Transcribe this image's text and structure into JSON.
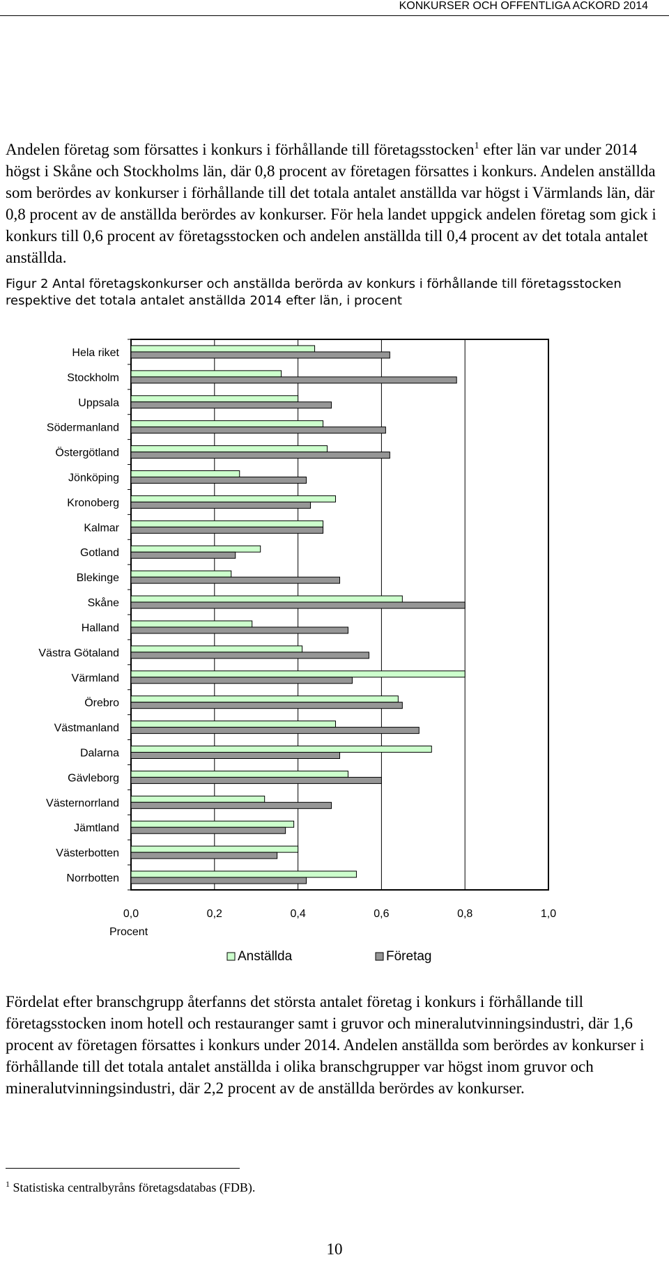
{
  "header": {
    "title": "KONKURSER OCH OFFENTLIGA ACKORD 2014"
  },
  "para1": {
    "before_sup": "Andelen företag som försattes i konkurs i förhållande till företagsstocken",
    "sup": "1",
    "after_sup": " efter län var under 2014 högst i Skåne och Stockholms län, där 0,8 procent av företagen försattes i konkurs. Andelen anställda som berördes av konkurser i förhållande till det totala antalet anställda var högst i Värmlands län, där 0,8 procent av de anställda berördes av konkurser. För hela landet uppgick andelen företag som gick i konkurs till 0,6 procent av företagsstocken och andelen anställda till 0,4 procent av det totala antalet anställda."
  },
  "figure": {
    "caption": "Figur 2 Antal företagskonkurser och anställda berörda av konkurs i förhållande till företagsstocken respektive det totala antalet anställda 2014 efter län, i procent"
  },
  "chart_data": {
    "type": "bar",
    "orientation": "horizontal",
    "categories": [
      "Hela riket",
      "Stockholm",
      "Uppsala",
      "Södermanland",
      "Östergötland",
      "Jönköping",
      "Kronoberg",
      "Kalmar",
      "Gotland",
      "Blekinge",
      "Skåne",
      "Halland",
      "Västra Götaland",
      "Värmland",
      "Örebro",
      "Västmanland",
      "Dalarna",
      "Gävleborg",
      "Västernorrland",
      "Jämtland",
      "Västerbotten",
      "Norrbotten"
    ],
    "series": [
      {
        "name": "Anställda",
        "color": "#ccffcc",
        "values": [
          0.44,
          0.36,
          0.4,
          0.46,
          0.47,
          0.26,
          0.49,
          0.46,
          0.31,
          0.24,
          0.65,
          0.29,
          0.41,
          0.8,
          0.64,
          0.49,
          0.72,
          0.52,
          0.32,
          0.39,
          0.4,
          0.54
        ]
      },
      {
        "name": "Företag",
        "color": "#969696",
        "values": [
          0.62,
          0.78,
          0.48,
          0.61,
          0.62,
          0.42,
          0.43,
          0.46,
          0.25,
          0.5,
          0.8,
          0.52,
          0.57,
          0.53,
          0.65,
          0.69,
          0.5,
          0.6,
          0.48,
          0.37,
          0.35,
          0.42
        ]
      }
    ],
    "xticks": [
      "0,0",
      "0,2",
      "0,4",
      "0,6",
      "0,8",
      "1,0"
    ],
    "xlim": [
      0,
      1.0
    ],
    "xlabel": "Procent",
    "grid": true,
    "legend": "bottom"
  },
  "para2": {
    "text": "Fördelat efter branschgrupp återfanns det största antalet företag i konkurs i förhållande till företagsstocken inom hotell och restauranger samt i gruvor och mineralutvinningsindustri, där 1,6 procent av företagen försattes i konkurs under 2014. Andelen anställda som berördes av konkurser i förhållande till det totala antalet anställda i olika branschgrupper var högst inom gruvor och mineralutvinningsindustri, där 2,2 procent av de anställda berördes av konkurser."
  },
  "footnote": {
    "number": "1",
    "text": " Statistiska centralbyråns företagsdatabas (FDB)."
  },
  "page_number": "10"
}
